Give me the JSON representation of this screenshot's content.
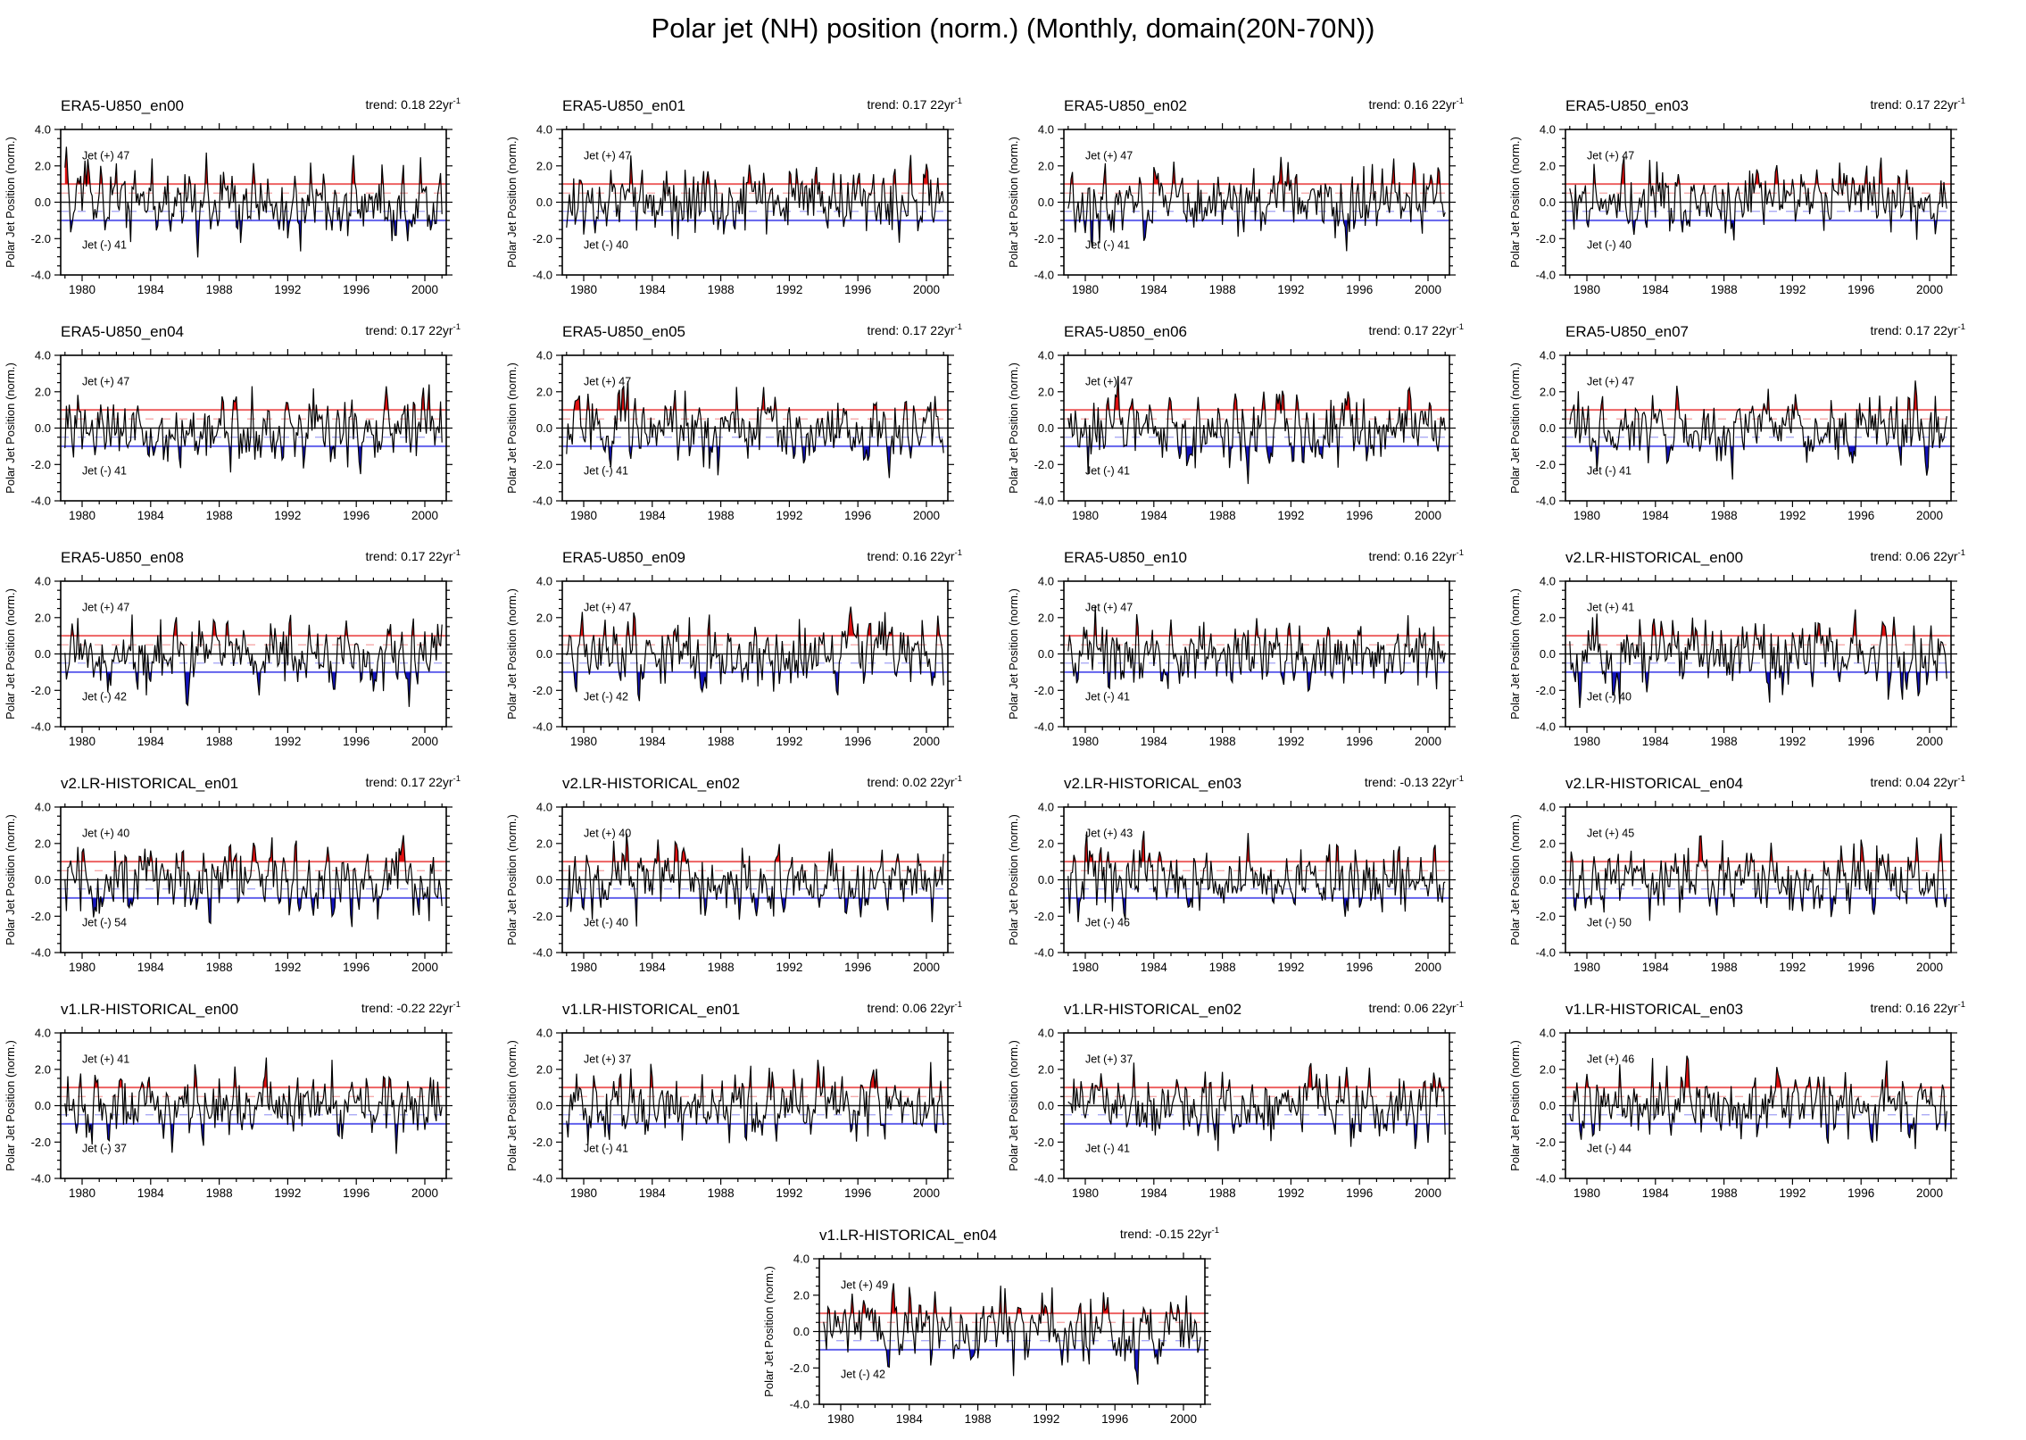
{
  "title": "Polar jet (NH) position (norm.) (Monthly, domain(20N-70N))",
  "labels": {
    "trend_prefix": "trend:",
    "trend_unit": "22yr",
    "trend_exponent": "-1",
    "jet_plus_prefix": "Jet (+)",
    "jet_minus_prefix": "Jet (-)"
  },
  "colors": {
    "series_line": "#000000",
    "positive_fill": "#dd1111",
    "negative_fill": "#1414bd",
    "ref_plus1": "#ee6666",
    "ref_plus05": "#f5abab",
    "ref_zero": "#222222",
    "ref_minus05": "#ababf5",
    "ref_minus1": "#6666ee",
    "jet_plus_text": "#dd1111",
    "jet_minus_text": "#2222dd"
  },
  "chart_data": {
    "type": "line",
    "title": "Polar jet (NH) position (norm.) (Monthly, domain(20N-70N))",
    "xlabel": "",
    "ylabel": "Polar Jet Position (norm.)",
    "x_range": [
      1978.75,
      2001.25
    ],
    "y_range": [
      -4.0,
      4.0
    ],
    "x_ticks": [
      1980,
      1984,
      1988,
      1992,
      1996,
      2000
    ],
    "x_minor_tick_interval_years": 1,
    "y_ticks": [
      4.0,
      2.0,
      0.0,
      -2.0,
      -4.0
    ],
    "y_minor_tick_interval": 0.5,
    "grid": false,
    "legend": "none",
    "series_description": "Each panel: black monthly time series of normalized NH polar jet position, Jan 1979 - Dec 2000; horizontal reference lines at +1 (solid red), +0.5 (dashed red), 0 (solid black), -0.5 (dashed blue), -1 (solid blue); areas above +1 shaded red, areas below -1 shaded blue; exact monthly values not labeled in figure",
    "panels": [
      {
        "name": "ERA5-U850_en00",
        "trend": "0.18",
        "jet_plus": 47,
        "jet_minus": 41
      },
      {
        "name": "ERA5-U850_en01",
        "trend": "0.17",
        "jet_plus": 47,
        "jet_minus": 40
      },
      {
        "name": "ERA5-U850_en02",
        "trend": "0.16",
        "jet_plus": 47,
        "jet_minus": 41
      },
      {
        "name": "ERA5-U850_en03",
        "trend": "0.17",
        "jet_plus": 47,
        "jet_minus": 40
      },
      {
        "name": "ERA5-U850_en04",
        "trend": "0.17",
        "jet_plus": 47,
        "jet_minus": 41
      },
      {
        "name": "ERA5-U850_en05",
        "trend": "0.17",
        "jet_plus": 47,
        "jet_minus": 41
      },
      {
        "name": "ERA5-U850_en06",
        "trend": "0.17",
        "jet_plus": 47,
        "jet_minus": 41
      },
      {
        "name": "ERA5-U850_en07",
        "trend": "0.17",
        "jet_plus": 47,
        "jet_minus": 41
      },
      {
        "name": "ERA5-U850_en08",
        "trend": "0.17",
        "jet_plus": 47,
        "jet_minus": 42
      },
      {
        "name": "ERA5-U850_en09",
        "trend": "0.16",
        "jet_plus": 47,
        "jet_minus": 42
      },
      {
        "name": "ERA5-U850_en10",
        "trend": "0.16",
        "jet_plus": 47,
        "jet_minus": 41
      },
      {
        "name": "v2.LR-HISTORICAL_en00",
        "trend": "0.06",
        "jet_plus": 41,
        "jet_minus": 40
      },
      {
        "name": "v2.LR-HISTORICAL_en01",
        "trend": "0.17",
        "jet_plus": 40,
        "jet_minus": 54
      },
      {
        "name": "v2.LR-HISTORICAL_en02",
        "trend": "0.02",
        "jet_plus": 40,
        "jet_minus": 40
      },
      {
        "name": "v2.LR-HISTORICAL_en03",
        "trend": "-0.13",
        "jet_plus": 43,
        "jet_minus": 46
      },
      {
        "name": "v2.LR-HISTORICAL_en04",
        "trend": "0.04",
        "jet_plus": 45,
        "jet_minus": 50
      },
      {
        "name": "v1.LR-HISTORICAL_en00",
        "trend": "-0.22",
        "jet_plus": 41,
        "jet_minus": 37
      },
      {
        "name": "v1.LR-HISTORICAL_en01",
        "trend": "0.06",
        "jet_plus": 37,
        "jet_minus": 41
      },
      {
        "name": "v1.LR-HISTORICAL_en02",
        "trend": "0.06",
        "jet_plus": 37,
        "jet_minus": 41
      },
      {
        "name": "v1.LR-HISTORICAL_en03",
        "trend": "0.16",
        "jet_plus": 46,
        "jet_minus": 44
      },
      {
        "name": "v1.LR-HISTORICAL_en04",
        "trend": "-0.15",
        "jet_plus": 49,
        "jet_minus": 42
      }
    ]
  }
}
